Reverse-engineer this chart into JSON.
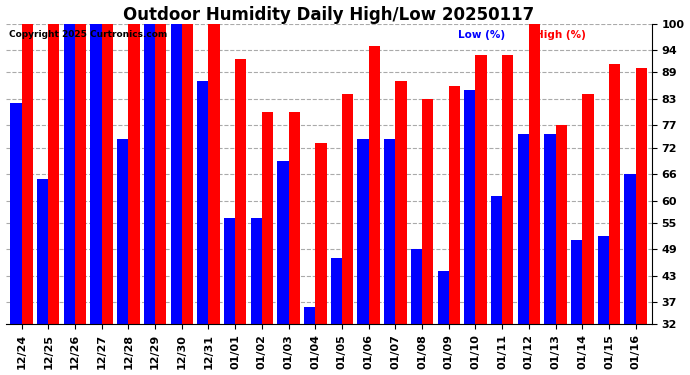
{
  "title": "Outdoor Humidity Daily High/Low 20250117",
  "copyright": "Copyright 2025 Curtronics.com",
  "legend_low": "Low (%)",
  "legend_high": "High (%)",
  "categories": [
    "12/24",
    "12/25",
    "12/26",
    "12/27",
    "12/28",
    "12/29",
    "12/30",
    "12/31",
    "01/01",
    "01/02",
    "01/03",
    "01/04",
    "01/05",
    "01/06",
    "01/07",
    "01/08",
    "01/09",
    "01/10",
    "01/11",
    "01/12",
    "01/13",
    "01/14",
    "01/15",
    "01/16"
  ],
  "high": [
    100,
    100,
    100,
    100,
    100,
    100,
    100,
    100,
    92,
    80,
    80,
    73,
    84,
    95,
    87,
    83,
    86,
    93,
    93,
    100,
    77,
    84,
    91,
    90
  ],
  "low": [
    82,
    65,
    100,
    100,
    74,
    100,
    100,
    87,
    56,
    56,
    69,
    36,
    47,
    74,
    74,
    49,
    44,
    85,
    61,
    75,
    75,
    51,
    52,
    66
  ],
  "ymin": 32,
  "ymax": 100,
  "yticks": [
    32,
    37,
    43,
    49,
    55,
    60,
    66,
    72,
    77,
    83,
    89,
    94,
    100
  ],
  "bar_color_high": "#ff0000",
  "bar_color_low": "#0000ff",
  "background_color": "#ffffff",
  "grid_color": "#aaaaaa",
  "title_fontsize": 12,
  "tick_fontsize": 8,
  "bar_width": 0.42
}
